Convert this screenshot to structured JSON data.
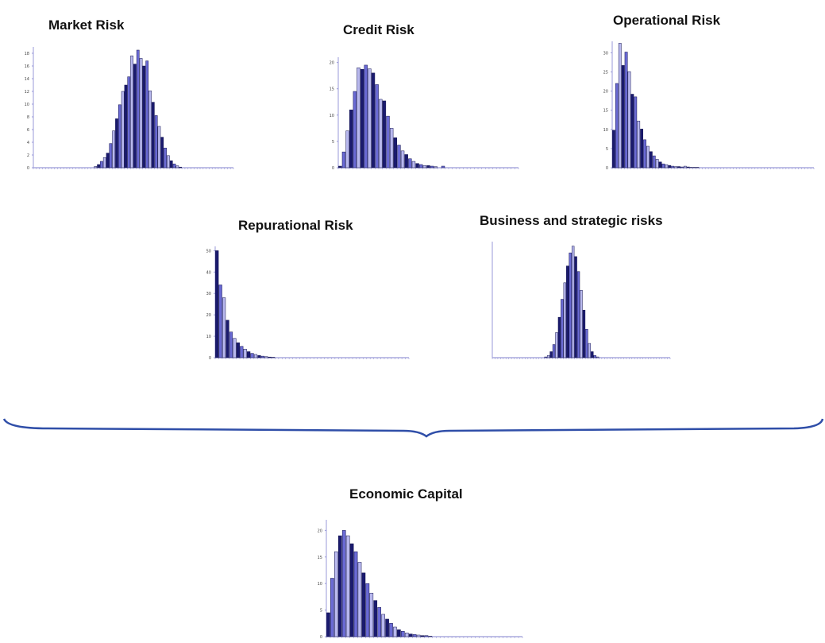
{
  "chart_data": [
    {
      "type": "bar",
      "title": "Market Risk",
      "ylim": [
        0,
        19
      ],
      "yticks": [
        0,
        2,
        4,
        6,
        8,
        10,
        12,
        14,
        16,
        18
      ],
      "values": [
        0,
        0,
        0,
        0,
        0,
        0,
        0,
        0,
        0,
        0,
        0,
        0,
        0,
        0,
        0,
        0,
        0,
        0,
        0,
        0,
        0.2,
        0.5,
        1,
        1.6,
        2.3,
        3.8,
        5.8,
        7.7,
        9.9,
        12,
        13,
        14.3,
        17.6,
        16.3,
        18.5,
        17.2,
        16,
        16.8,
        12.1,
        10.3,
        8.2,
        6.5,
        4.8,
        3.1,
        1.9,
        1.1,
        0.6,
        0.3,
        0.1,
        0,
        0,
        0,
        0,
        0,
        0,
        0,
        0,
        0,
        0,
        0,
        0,
        0,
        0,
        0,
        0,
        0
      ],
      "colors": [
        "#1a1a6e",
        "#6a6ad4",
        "#b8b8ee"
      ]
    },
    {
      "type": "bar",
      "title": "Credit Risk",
      "ylim": [
        0,
        21
      ],
      "yticks": [
        0,
        5,
        10,
        15,
        20
      ],
      "values": [
        0.3,
        3,
        7,
        11,
        14.5,
        19,
        18.7,
        19.5,
        18.8,
        18,
        15.8,
        13,
        12.7,
        9.8,
        7.5,
        5.7,
        4.3,
        3.2,
        2.5,
        1.7,
        1.2,
        0.8,
        0.6,
        0.4,
        0.4,
        0.3,
        0.2,
        0,
        0.3,
        0,
        0,
        0,
        0,
        0,
        0,
        0,
        0,
        0,
        0,
        0,
        0,
        0,
        0,
        0,
        0,
        0,
        0,
        0,
        0
      ],
      "colors": [
        "#1a1a6e",
        "#6a6ad4",
        "#b8b8ee"
      ]
    },
    {
      "type": "bar",
      "title": "Operational Risk",
      "ylim": [
        0,
        33
      ],
      "yticks": [
        0,
        5,
        10,
        15,
        20,
        25,
        30
      ],
      "values": [
        9.8,
        22,
        32.5,
        26.7,
        30.2,
        25.1,
        19.2,
        18.5,
        12.2,
        10.1,
        7.3,
        5.6,
        4.2,
        3.1,
        2.2,
        1.5,
        1,
        0.8,
        0.6,
        0.4,
        0.3,
        0.3,
        0.2,
        0.4,
        0.2,
        0.1,
        0.1,
        0.1,
        0,
        0,
        0,
        0,
        0,
        0,
        0,
        0,
        0,
        0,
        0,
        0,
        0,
        0,
        0,
        0,
        0,
        0,
        0,
        0,
        0,
        0,
        0,
        0,
        0,
        0,
        0,
        0,
        0,
        0,
        0,
        0,
        0,
        0,
        0,
        0,
        0
      ],
      "colors": [
        "#1a1a6e",
        "#6a6ad4",
        "#b8b8ee"
      ]
    },
    {
      "type": "bar",
      "title": "Repurational Risk",
      "ylim": [
        0,
        52
      ],
      "yticks": [
        0,
        10,
        20,
        30,
        40,
        50
      ],
      "values": [
        50,
        34,
        28,
        17.5,
        12,
        9,
        7,
        5.3,
        4,
        2.8,
        2,
        1.5,
        1,
        0.7,
        0.5,
        0.3,
        0.2,
        0,
        0,
        0,
        0,
        0,
        0,
        0,
        0,
        0,
        0,
        0,
        0,
        0,
        0,
        0,
        0,
        0,
        0,
        0,
        0,
        0,
        0,
        0,
        0,
        0,
        0,
        0,
        0,
        0,
        0,
        0,
        0,
        0,
        0,
        0,
        0,
        0,
        0
      ],
      "colors": [
        "#1a1a6e",
        "#6a6ad4",
        "#b8b8ee"
      ]
    },
    {
      "type": "bar",
      "title": "Business and strategic risks",
      "ylim": [
        0,
        31
      ],
      "yticks": [],
      "values": [
        0,
        0,
        0,
        0,
        0,
        0,
        0,
        0,
        0,
        0,
        0,
        0,
        0,
        0,
        0,
        0,
        0,
        0,
        0,
        0.2,
        0.6,
        1.6,
        3.5,
        6.7,
        10.8,
        15.6,
        20,
        24.5,
        28,
        29.8,
        27,
        23,
        18,
        12.7,
        7.6,
        3.8,
        1.6,
        0.6,
        0.2,
        0,
        0,
        0,
        0,
        0,
        0,
        0,
        0,
        0,
        0,
        0,
        0,
        0,
        0,
        0,
        0,
        0,
        0,
        0,
        0,
        0,
        0,
        0,
        0,
        0,
        0
      ],
      "colors": [
        "#1a1a6e",
        "#6a6ad4",
        "#b8b8ee"
      ]
    },
    {
      "type": "bar",
      "title": "Economic Capital",
      "ylim": [
        0,
        22
      ],
      "yticks": [
        0,
        5,
        10,
        15,
        20
      ],
      "values": [
        4.5,
        11,
        16,
        19,
        20,
        19,
        17.5,
        16,
        14,
        12,
        10,
        8.2,
        6.8,
        5.5,
        4.2,
        3.3,
        2.5,
        1.8,
        1.3,
        1,
        0.7,
        0.5,
        0.4,
        0.3,
        0.2,
        0.2,
        0.1,
        0,
        0,
        0,
        0,
        0,
        0,
        0,
        0,
        0,
        0,
        0,
        0,
        0,
        0,
        0,
        0,
        0,
        0,
        0,
        0,
        0,
        0,
        0
      ],
      "colors": [
        "#1a1a6e",
        "#6a6ad4",
        "#b8b8ee"
      ]
    }
  ],
  "style": {
    "axis_color": "#9a9ad8",
    "tick_label_color": "#444444",
    "brace_color": "#2f4ea8"
  }
}
